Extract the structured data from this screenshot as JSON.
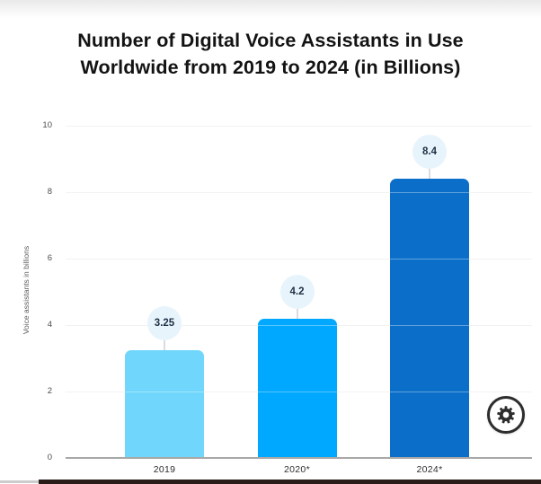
{
  "title": {
    "line1": "Number of Digital Voice Assistants in Use",
    "line2": "Worldwide from 2019 to 2024 (in Billions)"
  },
  "chart_data": {
    "type": "bar",
    "title": "Number of Digital Voice Assistants in Use Worldwide from 2019 to 2024 (in Billions)",
    "categories": [
      "2019",
      "2020*",
      "2024*"
    ],
    "values": [
      3.25,
      4.2,
      8.4
    ],
    "value_labels": [
      "3.25",
      "4.2",
      "8.4"
    ],
    "bar_colors": [
      "#70D6FB",
      "#00A8FF",
      "#0B6FC9"
    ],
    "xlabel": "",
    "ylabel": "Voice assistants in billions",
    "ylim": [
      0,
      10
    ],
    "yticks": [
      0,
      2,
      4,
      6,
      8,
      10
    ],
    "grid": true,
    "legend": false,
    "annotation_style": "value bubbles above bars"
  },
  "colors": {
    "bubble_fill": "#E8F4FC",
    "gridline": "#ECECEC",
    "axis_line": "#A8A8A8",
    "title_text": "#131313",
    "tick_text": "#4D4D4D",
    "bubble_text": "#1D3043"
  },
  "icons": {
    "settings": "gear-icon"
  }
}
